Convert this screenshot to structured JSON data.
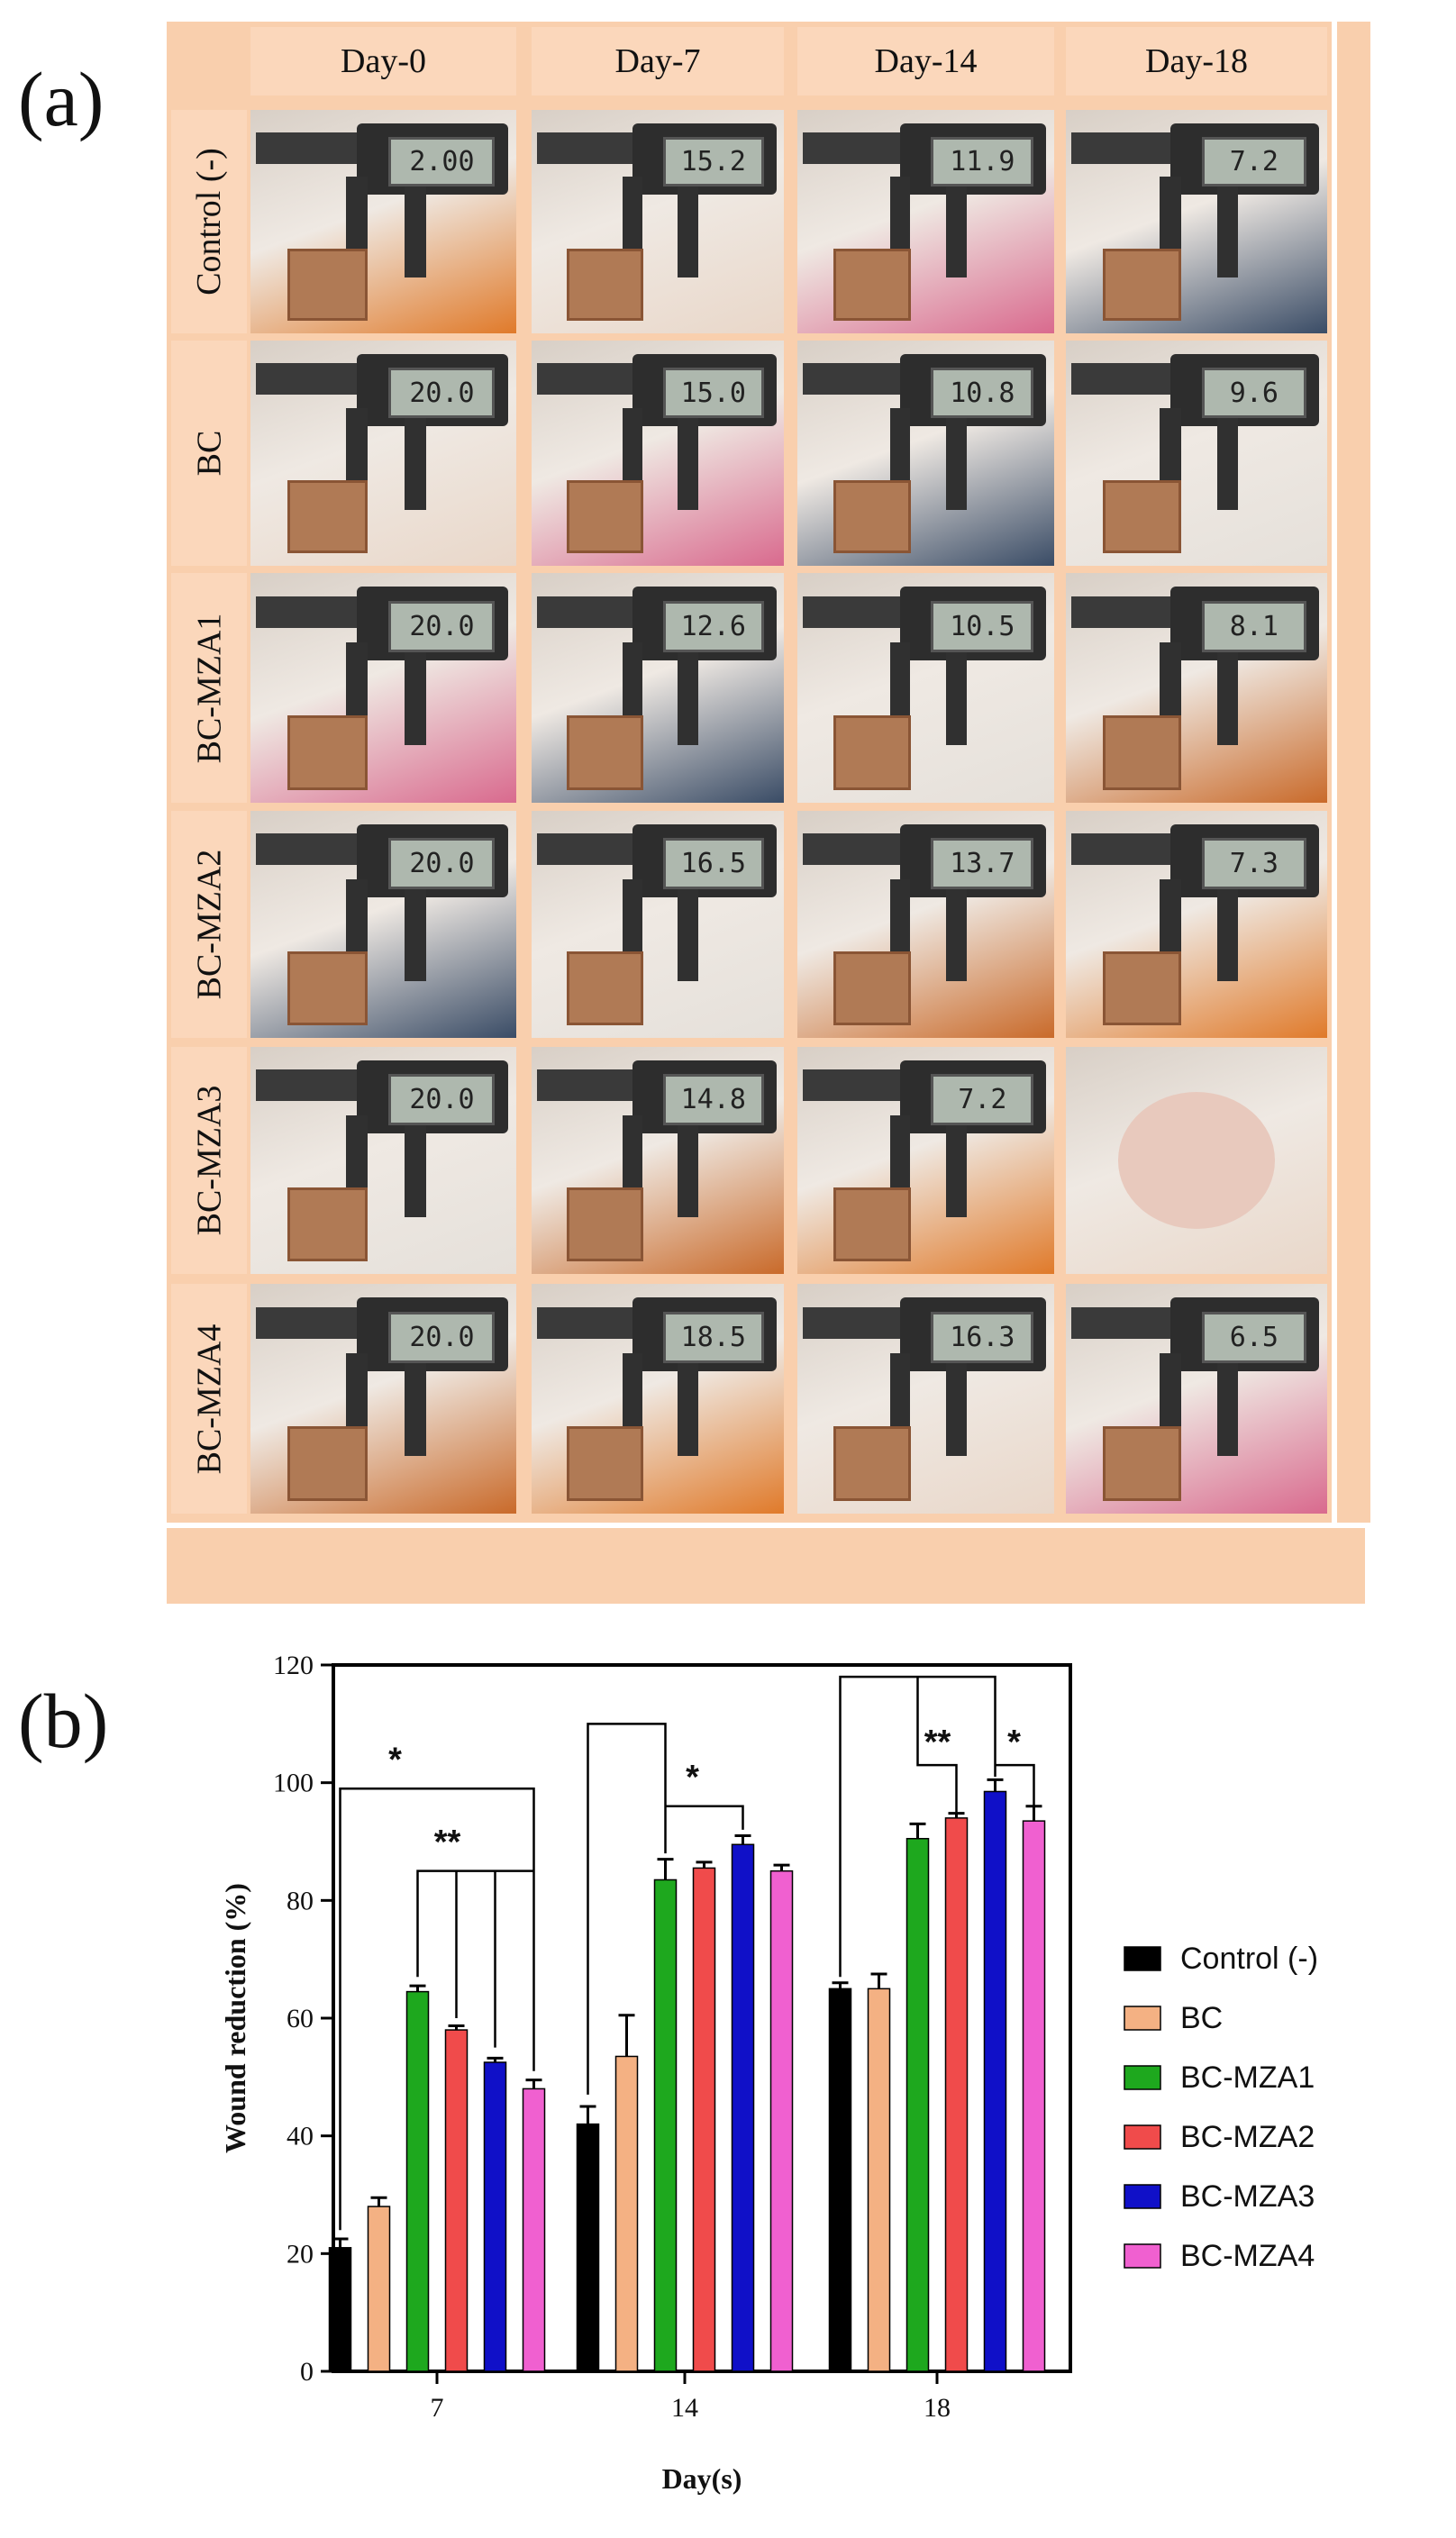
{
  "panel_labels": {
    "a": "(a)",
    "b": "(b)"
  },
  "photo_grid": {
    "columns": [
      "Day-0",
      "Day-7",
      "Day-14",
      "Day-18"
    ],
    "rows": [
      {
        "label": "Control (-)",
        "readings": [
          "2.00",
          "15.2",
          "11.9",
          "7.2"
        ]
      },
      {
        "label": "BC",
        "readings": [
          "20.0",
          "15.0",
          "10.8",
          "9.6"
        ]
      },
      {
        "label": "BC-MZA1",
        "readings": [
          "20.0",
          "12.6",
          "10.5",
          "8.1"
        ]
      },
      {
        "label": "BC-MZA2",
        "readings": [
          "20.0",
          "16.5",
          "13.7",
          "7.3"
        ]
      },
      {
        "label": "BC-MZA3",
        "readings": [
          "20.0",
          "14.8",
          "7.2",
          ""
        ]
      },
      {
        "label": "BC-MZA4",
        "readings": [
          "20.0",
          "18.5",
          "16.3",
          "6.5"
        ]
      }
    ],
    "colors": {
      "frame": "#f9cfad",
      "header": "#fbd7bb"
    }
  },
  "chart_data": {
    "type": "bar",
    "title": "",
    "xlabel": "Day(s)",
    "ylabel": "Wound reduction (%)",
    "categories": [
      "7",
      "14",
      "18"
    ],
    "ylim": [
      0,
      120
    ],
    "yticks": [
      "0",
      "20",
      "40",
      "60",
      "80",
      "100",
      "120"
    ],
    "legend_position": "right",
    "series": [
      {
        "name": "Control (-)",
        "color": "#000000",
        "values": [
          21,
          42,
          65
        ],
        "errors": [
          1.5,
          3,
          1
        ]
      },
      {
        "name": "BC",
        "color": "#f4b183",
        "values": [
          28,
          53.5,
          65
        ],
        "errors": [
          1.5,
          7,
          2.5
        ]
      },
      {
        "name": "BC-MZA1",
        "color": "#1ea81e",
        "values": [
          64.5,
          83.5,
          90.5
        ],
        "errors": [
          1,
          3.5,
          2.5
        ]
      },
      {
        "name": "BC-MZA2",
        "color": "#f04b4b",
        "values": [
          58,
          85.5,
          94
        ],
        "errors": [
          0.7,
          1,
          0.8
        ]
      },
      {
        "name": "BC-MZA3",
        "color": "#1010c8",
        "values": [
          52.5,
          89.5,
          98.5
        ],
        "errors": [
          0.7,
          1.5,
          2
        ]
      },
      {
        "name": "BC-MZA4",
        "color": "#f060d0",
        "values": [
          48,
          85,
          93.5
        ],
        "errors": [
          1.5,
          1,
          2.5
        ]
      }
    ],
    "annotations": [
      "*",
      "**",
      "*",
      "**",
      "*"
    ]
  }
}
